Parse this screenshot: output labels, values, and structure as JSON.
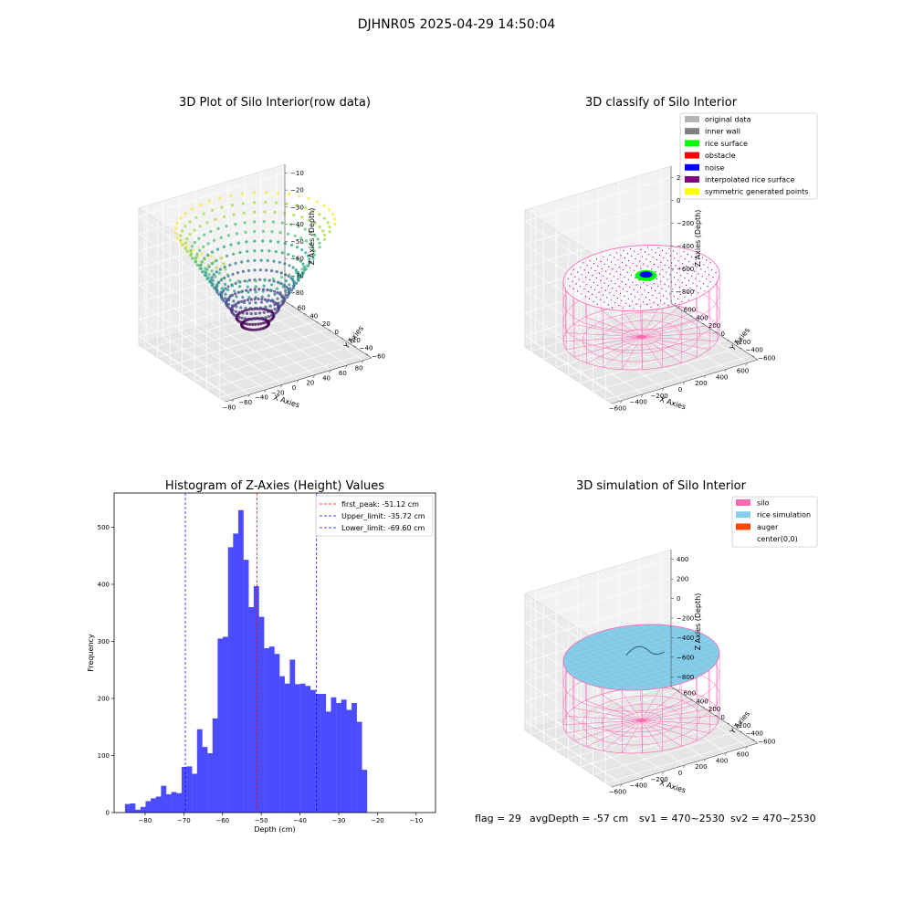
{
  "figure_title": "DJHNR05 2025-04-29 14:50:04",
  "colors": {
    "hist_bar": "#4c4cff",
    "first_peak": "#ff0000",
    "limits": "#0000ff",
    "silo": "#ff69b4",
    "rice": "#87ceeb",
    "auger": "#ff4500",
    "grid_pane": "#f2f2f2",
    "noise": "#0000ff",
    "rice_surface": "#00ff00"
  },
  "info_line": {
    "flag": "flag = 29",
    "avg": "avgDepth = -57 cm",
    "sv1": "sv1 = 470~2530",
    "sv2": "sv2 = 470~2530"
  },
  "chart_data": [
    {
      "type": "scatter",
      "dimension": "3d",
      "title": "3D Plot of Silo Interior(row data)",
      "xlabel": "X Axies",
      "ylabel": "Y Axies",
      "zlabel": "Z Axies (Depth)",
      "xticks": [
        "−80",
        "−60",
        "−40",
        "−20",
        "0",
        "20",
        "40",
        "60",
        "80"
      ],
      "yticks": [
        "−60",
        "−40",
        "−20",
        "0",
        "20",
        "40",
        "60"
      ],
      "zticks": [
        "−10",
        "−20",
        "−30",
        "−40",
        "−50",
        "−60",
        "−70",
        "−80"
      ],
      "xlim": [
        -85,
        85
      ],
      "ylim": [
        -65,
        65
      ],
      "zlim": [
        -88,
        -5
      ],
      "colormap": "viridis",
      "shape": "bowl"
    },
    {
      "type": "scatter",
      "dimension": "3d",
      "title": "3D classify of Silo Interior",
      "xlabel": "X Axies",
      "ylabel": "Y Axies",
      "zlabel": "Z Axies (Depth)",
      "xticks": [
        "−600",
        "−400",
        "−200",
        "0",
        "200",
        "400",
        "600"
      ],
      "yticks": [
        "−600",
        "−400",
        "−200",
        "0",
        "200",
        "400",
        "600"
      ],
      "zticks": [
        "200",
        "0",
        "−200",
        "−400",
        "−600",
        "−800"
      ],
      "legend": {
        "position": "top-right",
        "entries": [
          {
            "label": "original data",
            "color": "#b3b3b3"
          },
          {
            "label": "inner wall",
            "color": "#808080"
          },
          {
            "label": "rice surface",
            "color": "#00ff00"
          },
          {
            "label": "obstacle",
            "color": "#ff0000"
          },
          {
            "label": "noise",
            "color": "#0000ff"
          },
          {
            "label": "interpolated rice surface",
            "color": "#800080"
          },
          {
            "label": "symmetric generated points",
            "color": "#ffff00"
          }
        ]
      }
    },
    {
      "type": "bar",
      "title": "Histogram of Z-Axies (Height) Values",
      "xlabel": "Depth (cm)",
      "ylabel": "Frequency",
      "xlim": [
        -88,
        -5
      ],
      "ylim": [
        0,
        560
      ],
      "xticks": [
        -80,
        -70,
        -60,
        -50,
        -40,
        -30,
        -20,
        -10
      ],
      "yticks": [
        0,
        100,
        200,
        300,
        400,
        500
      ],
      "bin_start": -85.2,
      "bin_width": 1.33,
      "values": [
        15,
        16,
        5,
        10,
        20,
        25,
        28,
        47,
        32,
        36,
        34,
        80,
        81,
        68,
        146,
        115,
        104,
        165,
        305,
        308,
        465,
        489,
        530,
        443,
        360,
        397,
        343,
        288,
        291,
        278,
        239,
        226,
        268,
        225,
        226,
        222,
        215,
        208,
        208,
        177,
        202,
        192,
        198,
        180,
        192,
        159,
        75
      ],
      "lines": [
        {
          "label": "first_peak: -51.12 cm",
          "x": -51.12,
          "color": "#ff0000"
        },
        {
          "label": "Upper_limit: -35.72 cm",
          "x": -35.72,
          "color": "#0000ff"
        },
        {
          "label": "Lower_limit: -69.60 cm",
          "x": -69.6,
          "color": "#0000ff"
        }
      ],
      "legend_position": "top-right"
    },
    {
      "type": "surface",
      "dimension": "3d",
      "title": "3D simulation of Silo Interior",
      "xlabel": "X Axies",
      "ylabel": "Y Axies",
      "zlabel": "Z Axies (Depth)",
      "xticks": [
        "−600",
        "−400",
        "−200",
        "0",
        "200",
        "400",
        "600"
      ],
      "yticks": [
        "−600",
        "−400",
        "−200",
        "0",
        "200",
        "400",
        "600"
      ],
      "zticks": [
        "400",
        "200",
        "0",
        "−200",
        "−400",
        "−600",
        "−800"
      ],
      "legend": {
        "position": "top-right",
        "entries": [
          {
            "label": "silo",
            "color": "#ff69b4"
          },
          {
            "label": "rice simulation",
            "color": "#87ceeb"
          },
          {
            "label": "auger",
            "color": "#ff4500"
          },
          {
            "label": "center(0,0)",
            "color": ""
          }
        ]
      }
    }
  ]
}
